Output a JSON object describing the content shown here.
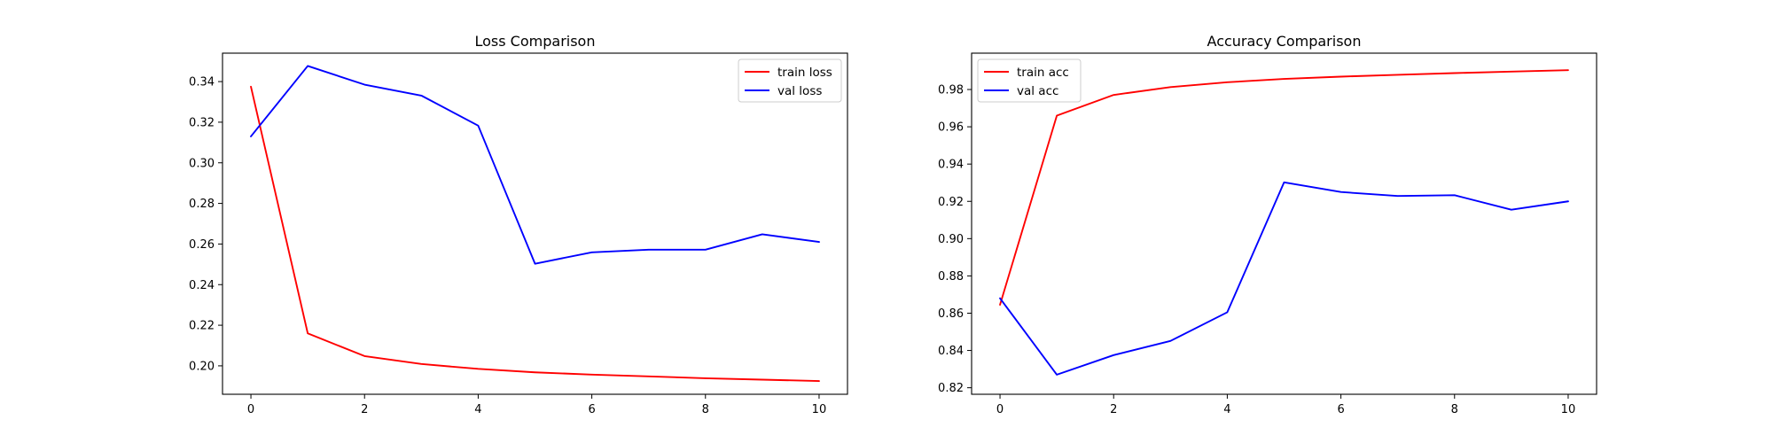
{
  "chart_data": [
    {
      "type": "line",
      "title": "Loss Comparison",
      "xlabel": "",
      "ylabel": "",
      "x": [
        0,
        1,
        2,
        3,
        4,
        5,
        6,
        7,
        8,
        9,
        10
      ],
      "xlim": [
        -0.5,
        10.5
      ],
      "ylim": [
        0.186,
        0.354
      ],
      "xticks": [
        0,
        2,
        4,
        6,
        8,
        10
      ],
      "yticks": [
        0.2,
        0.22,
        0.24,
        0.26,
        0.28,
        0.3,
        0.32,
        0.34
      ],
      "ytick_decimals": 2,
      "grid": false,
      "legend_position": "upper right",
      "series": [
        {
          "name": "train loss",
          "color": "#ff0000",
          "values": [
            0.3375,
            0.216,
            0.2048,
            0.2009,
            0.1985,
            0.1968,
            0.1957,
            0.1948,
            0.1939,
            0.1932,
            0.1925
          ]
        },
        {
          "name": "val loss",
          "color": "#0000ff",
          "values": [
            0.313,
            0.3477,
            0.3385,
            0.3331,
            0.3183,
            0.2503,
            0.2559,
            0.2572,
            0.2572,
            0.2648,
            0.261
          ]
        }
      ]
    },
    {
      "type": "line",
      "title": "Accuracy Comparison",
      "xlabel": "",
      "ylabel": "",
      "x": [
        0,
        1,
        2,
        3,
        4,
        5,
        6,
        7,
        8,
        9,
        10
      ],
      "xlim": [
        -0.5,
        10.5
      ],
      "ylim": [
        0.8165,
        0.9995
      ],
      "xticks": [
        0,
        2,
        4,
        6,
        8,
        10
      ],
      "yticks": [
        0.82,
        0.84,
        0.86,
        0.88,
        0.9,
        0.92,
        0.94,
        0.96,
        0.98
      ],
      "ytick_decimals": 2,
      "grid": false,
      "legend_position": "upper left",
      "series": [
        {
          "name": "train acc",
          "color": "#ff0000",
          "values": [
            0.8645,
            0.966,
            0.9771,
            0.9813,
            0.9839,
            0.9857,
            0.9869,
            0.9879,
            0.9888,
            0.9896,
            0.9904
          ]
        },
        {
          "name": "val acc",
          "color": "#0000ff",
          "values": [
            0.868,
            0.827,
            0.8375,
            0.8451,
            0.8605,
            0.9302,
            0.925,
            0.9229,
            0.9233,
            0.9155,
            0.92
          ]
        }
      ]
    }
  ]
}
